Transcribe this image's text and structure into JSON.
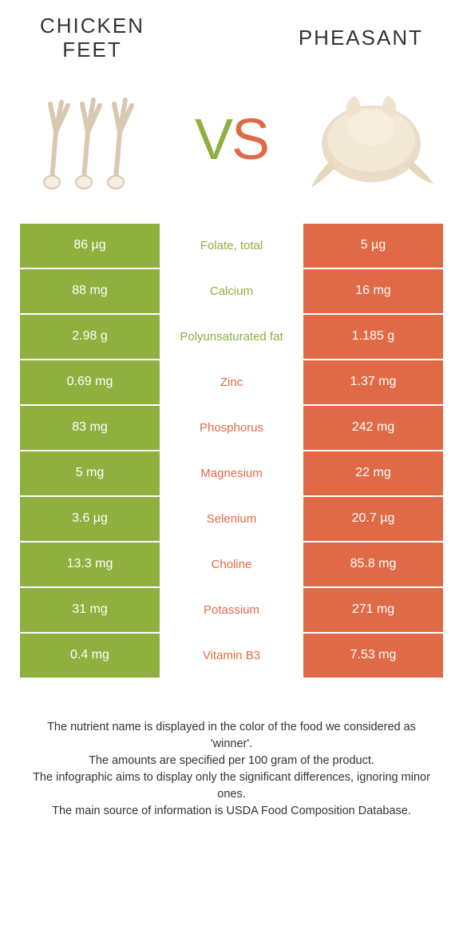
{
  "colors": {
    "green": "#8fb03e",
    "orange": "#e06a46",
    "white": "#ffffff",
    "text": "#333333"
  },
  "header": {
    "left_title_line1": "Chicken",
    "left_title_line2": "feet",
    "right_title": "Pheasant"
  },
  "vs": {
    "v": "V",
    "s": "S"
  },
  "rows": [
    {
      "left": "86 µg",
      "label": "Folate, total",
      "right": "5 µg",
      "winner": "left"
    },
    {
      "left": "88 mg",
      "label": "Calcium",
      "right": "16 mg",
      "winner": "left"
    },
    {
      "left": "2.98 g",
      "label": "Polyunsaturated fat",
      "right": "1.185 g",
      "winner": "left"
    },
    {
      "left": "0.69 mg",
      "label": "Zinc",
      "right": "1.37 mg",
      "winner": "right"
    },
    {
      "left": "83 mg",
      "label": "Phosphorus",
      "right": "242 mg",
      "winner": "right"
    },
    {
      "left": "5 mg",
      "label": "Magnesium",
      "right": "22 mg",
      "winner": "right"
    },
    {
      "left": "3.6 µg",
      "label": "Selenium",
      "right": "20.7 µg",
      "winner": "right"
    },
    {
      "left": "13.3 mg",
      "label": "Choline",
      "right": "85.8 mg",
      "winner": "right"
    },
    {
      "left": "31 mg",
      "label": "Potassium",
      "right": "271 mg",
      "winner": "right"
    },
    {
      "left": "0.4 mg",
      "label": "Vitamin B3",
      "right": "7.53 mg",
      "winner": "right"
    }
  ],
  "footer": {
    "line1": "The nutrient name is displayed in the color of the food we considered as 'winner'.",
    "line2": "The amounts are specified per 100 gram of the product.",
    "line3": "The infographic aims to display only the significant differences, ignoring minor ones.",
    "line4": "The main source of information is USDA Food Composition Database."
  }
}
